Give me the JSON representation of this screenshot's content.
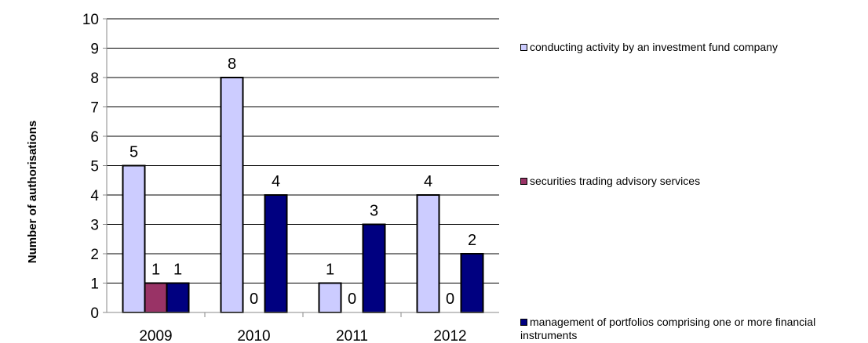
{
  "chart_data": {
    "type": "bar",
    "title": "",
    "xlabel": "",
    "ylabel": "Number of authorisations",
    "ylim": [
      0,
      10
    ],
    "yticks": [
      0,
      1,
      2,
      3,
      4,
      5,
      6,
      7,
      8,
      9,
      10
    ],
    "categories": [
      "2009",
      "2010",
      "2011",
      "2012"
    ],
    "grid": true,
    "legend_position": "right",
    "series": [
      {
        "name": "conducting activity by an investment fund company",
        "values": [
          5,
          8,
          1,
          4
        ],
        "color": "#ccccff"
      },
      {
        "name": "securities trading advisory services",
        "values": [
          1,
          0,
          0,
          0
        ],
        "color": "#993366"
      },
      {
        "name": "management of portfolios comprising one or more financial instruments",
        "values": [
          1,
          4,
          3,
          2
        ],
        "color": "#000080"
      }
    ]
  }
}
